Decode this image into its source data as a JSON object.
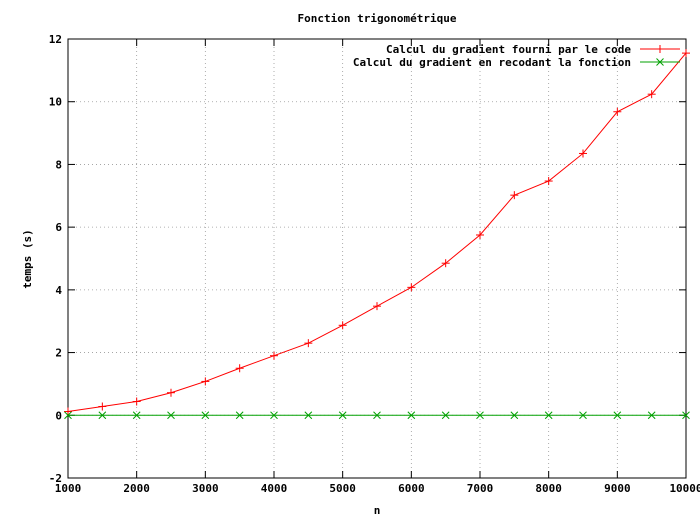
{
  "chart_data": {
    "type": "line",
    "title": "Fonction trigonométrique",
    "xlabel": "n",
    "ylabel": "temps (s)",
    "xlim": [
      1000,
      10000
    ],
    "ylim": [
      -2,
      12
    ],
    "xticks": [
      1000,
      2000,
      3000,
      4000,
      5000,
      6000,
      7000,
      8000,
      9000,
      10000
    ],
    "yticks": [
      -2,
      0,
      2,
      4,
      6,
      8,
      10,
      12
    ],
    "xtick_labels": [
      "1000",
      "2000",
      "3000",
      "4000",
      "5000",
      "6000",
      "7000",
      "8000",
      "9000",
      "10000"
    ],
    "ytick_labels": [
      "-2",
      "0",
      "2",
      "4",
      "6",
      "8",
      "10",
      "12"
    ],
    "grid": true,
    "legend_position": "top-right",
    "x": [
      1000,
      1500,
      2000,
      2500,
      3000,
      3500,
      4000,
      4500,
      5000,
      5500,
      6000,
      6500,
      7000,
      7500,
      8000,
      8500,
      9000,
      9500,
      10000
    ],
    "series": [
      {
        "name": "Calcul du gradient fourni par le code",
        "color": "#ff0000",
        "marker": "plus",
        "values": [
          0.12,
          0.28,
          0.44,
          0.72,
          1.08,
          1.5,
          1.9,
          2.3,
          2.87,
          3.48,
          4.08,
          4.85,
          5.75,
          7.02,
          7.47,
          8.35,
          9.68,
          10.24,
          11.55
        ]
      },
      {
        "name": "Calcul du gradient en recodant la fonction",
        "color": "#00a000",
        "marker": "cross",
        "values": [
          0,
          0,
          0,
          0,
          0,
          0,
          0,
          0,
          0,
          0,
          0,
          0,
          0,
          0,
          0,
          0,
          0,
          0,
          0
        ]
      }
    ]
  }
}
